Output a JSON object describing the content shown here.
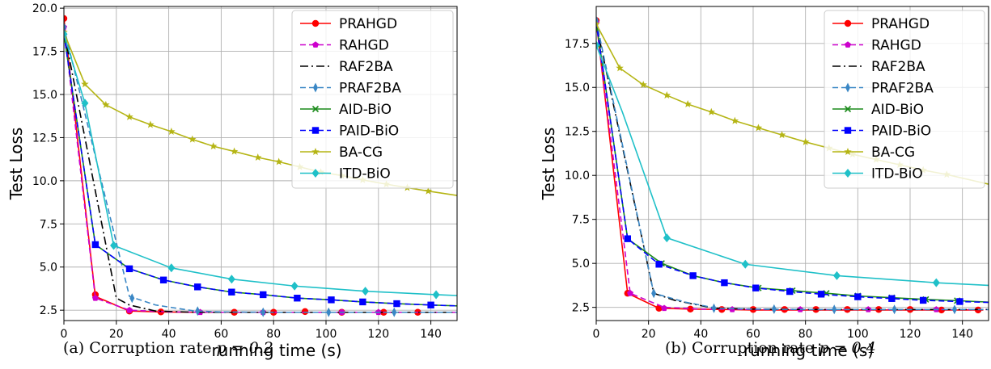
{
  "series_styles": {
    "PRAHGD": {
      "color": "#ff0000",
      "dash": "solid",
      "marker": "circle"
    },
    "RAHGD": {
      "color": "#cc00cc",
      "dash": "dashed",
      "marker": "pentagon"
    },
    "RAF2BA": {
      "color": "#000000",
      "dash": "dashdot",
      "marker": "none"
    },
    "PRAF2BA": {
      "color": "#3a87c5",
      "dash": "dashed",
      "marker": "thin_diamond"
    },
    "AID-BiO": {
      "color": "#1a8a1a",
      "dash": "solid",
      "marker": "x"
    },
    "PAID-BiO": {
      "color": "#0000ff",
      "dash": "dashed",
      "marker": "square"
    },
    "BA-CG": {
      "color": "#b5b515",
      "dash": "solid",
      "marker": "star"
    },
    "ITD-BiO": {
      "color": "#1fc0c8",
      "dash": "solid",
      "marker": "diamond"
    }
  },
  "chart_data": [
    {
      "type": "line",
      "caption": "(a)  Corruption rate ",
      "caption_math": "p = 0.2",
      "xlabel": "running time  (s)",
      "ylabel": "Test Loss",
      "xlim": [
        0,
        150
      ],
      "ylim": [
        1.9,
        20.1
      ],
      "xticks": [
        0,
        20,
        40,
        60,
        80,
        100,
        120,
        140
      ],
      "yticks": [
        2.5,
        5.0,
        7.5,
        10.0,
        12.5,
        15.0,
        17.5,
        20.0
      ],
      "ytick_labels": [
        "2.5",
        "5.0",
        "7.5",
        "10.0",
        "12.5",
        "15.0",
        "17.5",
        "20.0"
      ],
      "grid": true,
      "legend": "top-right",
      "series": [
        {
          "name": "PRAHGD",
          "x": [
            0,
            12,
            25,
            37,
            50,
            65,
            78,
            100,
            115,
            135,
            150
          ],
          "y": [
            19.4,
            3.3,
            2.45,
            2.4,
            2.38,
            2.38,
            2.38,
            2.38,
            2.38,
            2.38,
            2.38
          ],
          "markers": [
            [
              0,
              19.4
            ],
            [
              12,
              3.4
            ],
            [
              25,
              2.45
            ],
            [
              37,
              2.4
            ],
            [
              65,
              2.38
            ],
            [
              80,
              2.38
            ],
            [
              92,
              2.42
            ],
            [
              106,
              2.38
            ],
            [
              122,
              2.38
            ],
            [
              135,
              2.38
            ]
          ]
        },
        {
          "name": "RAHGD",
          "x": [
            0,
            12,
            25,
            40,
            60,
            80,
            100,
            120,
            150
          ],
          "y": [
            18.9,
            3.2,
            2.5,
            2.4,
            2.38,
            2.38,
            2.38,
            2.38,
            2.38
          ],
          "markers": [
            [
              0,
              18.9
            ],
            [
              12,
              3.2
            ],
            [
              25,
              2.5
            ],
            [
              52,
              2.38
            ],
            [
              76,
              2.38
            ],
            [
              106,
              2.38
            ],
            [
              120,
              2.38
            ]
          ]
        },
        {
          "name": "RAF2BA",
          "x": [
            0,
            20,
            25,
            35,
            50,
            70,
            100,
            150
          ],
          "y": [
            18.7,
            3.2,
            2.8,
            2.45,
            2.38,
            2.38,
            2.38,
            2.38
          ],
          "markers": []
        },
        {
          "name": "PRAF2BA",
          "x": [
            0,
            25,
            35,
            50,
            60,
            80,
            100,
            150
          ],
          "y": [
            18.9,
            3.3,
            2.8,
            2.45,
            2.4,
            2.38,
            2.38,
            2.38
          ],
          "markers": [
            [
              0,
              18.9
            ],
            [
              26,
              3.2
            ],
            [
              51,
              2.45
            ],
            [
              76,
              2.38
            ],
            [
              101,
              2.38
            ],
            [
              126,
              2.38
            ]
          ]
        },
        {
          "name": "AID-BiO",
          "x": [
            0,
            12,
            25,
            38,
            51,
            64,
            76,
            89,
            102,
            114,
            127,
            140,
            150
          ],
          "y": [
            18.5,
            6.3,
            4.9,
            4.25,
            3.85,
            3.55,
            3.4,
            3.2,
            3.1,
            2.98,
            2.88,
            2.8,
            2.75
          ],
          "markers": [
            [
              12,
              6.3
            ],
            [
              25,
              4.9
            ],
            [
              38,
              4.25
            ],
            [
              51,
              3.85
            ],
            [
              64,
              3.55
            ],
            [
              76,
              3.4
            ],
            [
              89,
              3.2
            ],
            [
              102,
              3.1
            ],
            [
              114,
              2.98
            ],
            [
              127,
              2.88
            ],
            [
              140,
              2.8
            ]
          ]
        },
        {
          "name": "PAID-BiO",
          "x": [
            0,
            12,
            25,
            38,
            51,
            64,
            76,
            89,
            102,
            114,
            127,
            140,
            150
          ],
          "y": [
            18.5,
            6.3,
            4.9,
            4.25,
            3.85,
            3.55,
            3.4,
            3.2,
            3.1,
            2.98,
            2.88,
            2.8,
            2.75
          ],
          "markers": [
            [
              12,
              6.3
            ],
            [
              25,
              4.9
            ],
            [
              38,
              4.25
            ],
            [
              51,
              3.85
            ],
            [
              64,
              3.55
            ],
            [
              76,
              3.4
            ],
            [
              89,
              3.2
            ],
            [
              102,
              3.1
            ],
            [
              114,
              2.98
            ],
            [
              127,
              2.88
            ],
            [
              140,
              2.8
            ]
          ]
        },
        {
          "name": "BA-CG",
          "x": [
            0,
            8,
            16,
            25,
            33,
            41,
            49,
            57,
            65,
            74,
            82,
            90,
            98,
            106,
            114,
            123,
            131,
            139,
            150
          ],
          "y": [
            18.6,
            15.6,
            14.4,
            13.7,
            13.25,
            12.85,
            12.4,
            12.0,
            11.7,
            11.35,
            11.1,
            10.8,
            10.5,
            10.3,
            10.05,
            9.8,
            9.6,
            9.4,
            9.15
          ],
          "markers": [
            [
              0,
              18.6
            ],
            [
              8,
              15.6
            ],
            [
              16,
              14.4
            ],
            [
              25,
              13.7
            ],
            [
              33,
              13.25
            ],
            [
              41,
              12.85
            ],
            [
              49,
              12.4
            ],
            [
              57,
              12.0
            ],
            [
              65,
              11.7
            ],
            [
              74,
              11.35
            ],
            [
              82,
              11.1
            ],
            [
              90,
              10.8
            ],
            [
              98,
              10.5
            ],
            [
              106,
              10.3
            ],
            [
              114,
              10.05
            ],
            [
              123,
              9.8
            ],
            [
              131,
              9.6
            ],
            [
              139,
              9.4
            ]
          ]
        },
        {
          "name": "ITD-BiO",
          "x": [
            0,
            8,
            19,
            41,
            64,
            88,
            115,
            142,
            150
          ],
          "y": [
            18.5,
            14.5,
            6.25,
            4.95,
            4.3,
            3.9,
            3.6,
            3.4,
            3.35
          ],
          "markers": [
            [
              0,
              18.5
            ],
            [
              8,
              14.5
            ],
            [
              19,
              6.25
            ],
            [
              41,
              4.95
            ],
            [
              64,
              4.3
            ],
            [
              88,
              3.9
            ],
            [
              115,
              3.6
            ],
            [
              142,
              3.4
            ]
          ]
        }
      ]
    },
    {
      "type": "line",
      "caption": "(b)  Corruption rate ",
      "caption_math": "p = 0.4",
      "xlabel": "running time  (s)",
      "ylabel": "Test Loss",
      "xlim": [
        0,
        150
      ],
      "ylim": [
        1.75,
        19.6
      ],
      "xticks": [
        0,
        20,
        40,
        60,
        80,
        100,
        120,
        140
      ],
      "yticks": [
        2.5,
        5.0,
        7.5,
        10.0,
        12.5,
        15.0,
        17.5
      ],
      "ytick_labels": [
        "2.5",
        "5.0",
        "7.5",
        "10.0",
        "12.5",
        "15.0",
        "17.5"
      ],
      "grid": true,
      "legend": "top-right",
      "series": [
        {
          "name": "PRAHGD",
          "x": [
            0,
            12,
            24,
            36,
            50,
            60,
            80,
            100,
            120,
            148
          ],
          "y": [
            18.8,
            3.3,
            2.45,
            2.4,
            2.38,
            2.35,
            2.35,
            2.35,
            2.35,
            2.35
          ],
          "markers": [
            [
              0,
              18.8
            ],
            [
              12,
              3.3
            ],
            [
              24,
              2.45
            ],
            [
              36,
              2.4
            ],
            [
              48,
              2.38
            ],
            [
              60,
              2.38
            ],
            [
              72,
              2.38
            ],
            [
              84,
              2.38
            ],
            [
              96,
              2.38
            ],
            [
              108,
              2.38
            ],
            [
              120,
              2.38
            ],
            [
              132,
              2.35
            ],
            [
              146,
              2.35
            ]
          ]
        },
        {
          "name": "RAHGD",
          "x": [
            0,
            13,
            26,
            40,
            60,
            80,
            100,
            120,
            150
          ],
          "y": [
            18.7,
            3.3,
            2.5,
            2.4,
            2.38,
            2.38,
            2.38,
            2.38,
            2.38
          ],
          "markers": [
            [
              0,
              18.7
            ],
            [
              13,
              3.3
            ],
            [
              26,
              2.45
            ],
            [
              52,
              2.38
            ],
            [
              78,
              2.38
            ],
            [
              104,
              2.38
            ],
            [
              130,
              2.38
            ]
          ]
        },
        {
          "name": "RAF2BA",
          "x": [
            0,
            22,
            30,
            45,
            60,
            80,
            100,
            150
          ],
          "y": [
            18.6,
            3.3,
            2.9,
            2.45,
            2.4,
            2.38,
            2.38,
            2.38
          ],
          "markers": []
        },
        {
          "name": "PRAF2BA",
          "x": [
            0,
            22,
            34,
            46,
            60,
            80,
            100,
            150
          ],
          "y": [
            18.8,
            3.3,
            2.8,
            2.45,
            2.4,
            2.38,
            2.38,
            2.38
          ],
          "markers": [
            [
              0,
              18.8
            ],
            [
              22,
              3.3
            ],
            [
              45,
              2.45
            ],
            [
              68,
              2.4
            ],
            [
              91,
              2.38
            ],
            [
              114,
              2.38
            ],
            [
              137,
              2.38
            ]
          ]
        },
        {
          "name": "AID-BiO",
          "x": [
            0,
            12,
            25,
            37,
            49,
            62,
            75,
            88,
            100,
            113,
            126,
            138,
            150
          ],
          "y": [
            18.7,
            6.4,
            5.0,
            4.3,
            3.9,
            3.6,
            3.45,
            3.3,
            3.15,
            3.05,
            2.95,
            2.88,
            2.8
          ],
          "markers": [
            [
              12,
              6.4
            ],
            [
              25,
              5.0
            ],
            [
              37,
              4.3
            ],
            [
              49,
              3.9
            ],
            [
              62,
              3.6
            ],
            [
              75,
              3.45
            ],
            [
              88,
              3.3
            ],
            [
              100,
              3.15
            ],
            [
              113,
              3.05
            ],
            [
              126,
              2.95
            ],
            [
              138,
              2.88
            ]
          ]
        },
        {
          "name": "PAID-BiO",
          "x": [
            0,
            12,
            24,
            37,
            49,
            61,
            74,
            86,
            100,
            113,
            125,
            139,
            150
          ],
          "y": [
            18.7,
            6.4,
            4.95,
            4.3,
            3.9,
            3.6,
            3.4,
            3.25,
            3.1,
            3.0,
            2.9,
            2.83,
            2.78
          ],
          "markers": [
            [
              12,
              6.4
            ],
            [
              24,
              4.95
            ],
            [
              37,
              4.3
            ],
            [
              49,
              3.9
            ],
            [
              61,
              3.6
            ],
            [
              74,
              3.4
            ],
            [
              86,
              3.25
            ],
            [
              100,
              3.1
            ],
            [
              113,
              3.0
            ],
            [
              125,
              2.9
            ],
            [
              139,
              2.83
            ]
          ]
        },
        {
          "name": "BA-CG",
          "x": [
            0,
            9,
            18,
            27,
            35,
            44,
            53,
            62,
            71,
            80,
            89,
            98,
            107,
            116,
            125,
            134,
            150
          ],
          "y": [
            18.6,
            16.1,
            15.15,
            14.55,
            14.05,
            13.6,
            13.1,
            12.7,
            12.3,
            11.9,
            11.55,
            11.2,
            10.9,
            10.6,
            10.3,
            10.05,
            9.5
          ],
          "markers": [
            [
              0,
              18.6
            ],
            [
              9,
              16.1
            ],
            [
              18,
              15.15
            ],
            [
              27,
              14.55
            ],
            [
              35,
              14.05
            ],
            [
              44,
              13.6
            ],
            [
              53,
              13.1
            ],
            [
              62,
              12.7
            ],
            [
              71,
              12.3
            ],
            [
              80,
              11.9
            ],
            [
              89,
              11.55
            ],
            [
              98,
              11.2
            ],
            [
              107,
              10.9
            ],
            [
              116,
              10.6
            ],
            [
              125,
              10.3
            ],
            [
              134,
              10.05
            ]
          ]
        },
        {
          "name": "ITD-BiO",
          "x": [
            0,
            10,
            27,
            57,
            92,
            130,
            150
          ],
          "y": [
            17.4,
            13.6,
            6.45,
            4.95,
            4.3,
            3.9,
            3.75
          ],
          "markers": [
            [
              0,
              17.4
            ],
            [
              27,
              6.45
            ],
            [
              57,
              4.95
            ],
            [
              92,
              4.3
            ],
            [
              130,
              3.9
            ]
          ]
        }
      ]
    }
  ]
}
